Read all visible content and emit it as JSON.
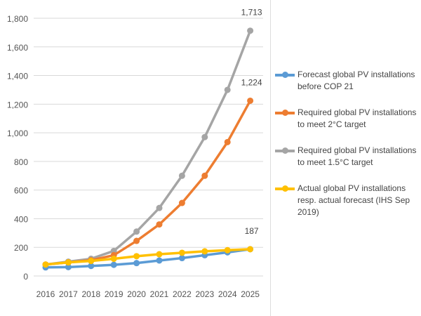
{
  "chart_data": {
    "type": "line",
    "categories": [
      "2016",
      "2017",
      "2018",
      "2019",
      "2020",
      "2021",
      "2022",
      "2023",
      "2024",
      "2025"
    ],
    "ylim": [
      0,
      1800
    ],
    "yticks": [
      "0",
      "200",
      "400",
      "600",
      "800",
      "1,000",
      "1,200",
      "1,400",
      "1,600",
      "1,800"
    ],
    "ytick_values": [
      0,
      200,
      400,
      600,
      800,
      1000,
      1200,
      1400,
      1600,
      1800
    ],
    "grid": true,
    "legend_position": "right",
    "series": [
      {
        "name": "Forecast global PV installations before COP 21",
        "color": "#5b9bd5",
        "values": [
          60,
          62,
          70,
          78,
          90,
          108,
          125,
          145,
          165,
          187
        ]
      },
      {
        "name": "Required global PV installations to meet 2°C target",
        "color": "#ed7d31",
        "values": [
          80,
          95,
          110,
          145,
          245,
          360,
          510,
          700,
          935,
          1224
        ]
      },
      {
        "name": "Required global PV installations to meet 1.5°C target",
        "color": "#a5a5a5",
        "values": [
          80,
          100,
          120,
          175,
          310,
          475,
          700,
          970,
          1300,
          1713
        ]
      },
      {
        "name": "Actual global PV installations resp. actual forecast (IHS Sep 2019)",
        "color": "#ffc000",
        "values": [
          80,
          95,
          105,
          120,
          138,
          152,
          162,
          172,
          180,
          187
        ]
      }
    ],
    "data_labels": [
      {
        "series": 2,
        "index": 9,
        "text": "1,713"
      },
      {
        "series": 1,
        "index": 9,
        "text": "1,224"
      },
      {
        "series": 3,
        "index": 9,
        "text": "187"
      }
    ]
  }
}
